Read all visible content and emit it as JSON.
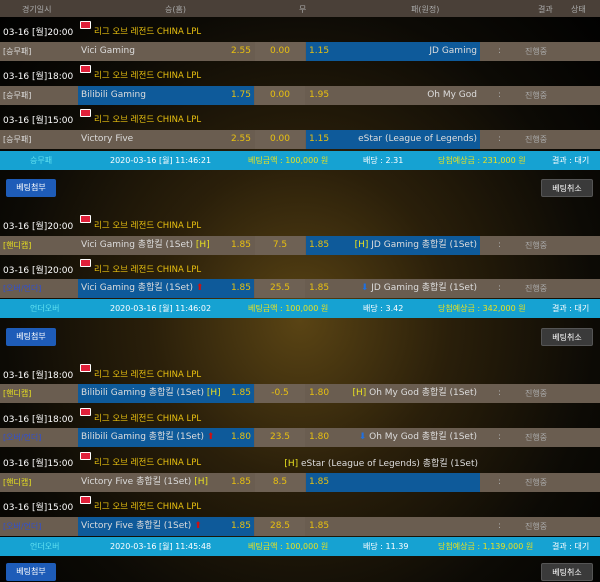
{
  "header": {
    "date": "경기일시",
    "home": "승(홈)",
    "draw": "무",
    "away": "패(원정)",
    "result": "결과",
    "status": "상태"
  },
  "league": "리그 오브 레전드 CHINA LPL",
  "buttons": {
    "attach": "베팅첨부",
    "cancel": "베팅취소"
  },
  "colors": {
    "selected": "#0e5a9a",
    "row": "#6a5d50",
    "summary": "#16a2d2",
    "odds": "#e8c010"
  },
  "slips": [
    {
      "games": [
        {
          "date": "03-16 [월]20:00",
          "type": "[승무패]",
          "kind": "m",
          "home": "Vici Gaming",
          "home_odds": "2.55",
          "draw": "0.00",
          "away_odds": "1.15",
          "away": "JD Gaming",
          "sel": "away",
          "result": ":",
          "status": "진행중"
        },
        {
          "date": "03-16 [월]18:00",
          "type": "[승무패]",
          "kind": "m",
          "home": "Bilibili Gaming",
          "home_odds": "1.75",
          "draw": "0.00",
          "away_odds": "1.95",
          "away": "Oh My God",
          "sel": "home",
          "result": ":",
          "status": "진행중"
        },
        {
          "date": "03-16 [월]15:00",
          "type": "[승무패]",
          "kind": "m",
          "home": "Victory Five",
          "home_odds": "2.55",
          "draw": "0.00",
          "away_odds": "1.15",
          "away": "eStar (League of Legends)",
          "sel": "away",
          "result": ":",
          "status": "진행중"
        }
      ],
      "summary": {
        "type": "승무패",
        "time": "2020-03-16 [월] 11:46:21",
        "amount": "베팅금액 : 100,000 원",
        "odds": "배당 : 2.31",
        "payout": "당첨예상금 : 231,000 원",
        "result": "결과 : 대기"
      }
    },
    {
      "games": [
        {
          "date": "03-16 [월]20:00",
          "type": "[핸디캡]",
          "kind": "h",
          "home": "Vici Gaming 총합킬 (1Set)",
          "home_mark": "[H]",
          "home_odds": "1.85",
          "draw": "7.5",
          "away_odds": "1.85",
          "away_mark": "[H]",
          "away": "JD Gaming 총합킬 (1Set)",
          "sel": "away",
          "result": ":",
          "status": "진행중"
        },
        {
          "date": "03-16 [월]20:00",
          "type": "[오버/언더]",
          "kind": "o",
          "home": "Vici Gaming 총합킬 (1Set)",
          "home_mark": "⬆",
          "home_odds": "1.85",
          "draw": "25.5",
          "away_odds": "1.85",
          "away_mark": "⬇",
          "away": "JD Gaming 총합킬 (1Set)",
          "sel": "home",
          "result": ":",
          "status": "진행중"
        }
      ],
      "summary": {
        "type": "언더오버",
        "time": "2020-03-16 [월] 11:46:02",
        "amount": "베팅금액 : 100,000 원",
        "odds": "배당 : 3.42",
        "payout": "당첨예상금 : 342,000 원",
        "result": "결과 : 대기"
      }
    },
    {
      "games": [
        {
          "date": "03-16 [월]18:00",
          "type": "[핸디캡]",
          "kind": "h",
          "home": "Bilibili Gaming 총합킬 (1Set)",
          "home_mark": "[H]",
          "home_odds": "1.85",
          "draw": "-0.5",
          "away_odds": "1.80",
          "away_mark": "[H]",
          "away": "Oh My God 총합킬 (1Set)",
          "sel": "home",
          "result": ":",
          "status": "진행중"
        },
        {
          "date": "03-16 [월]18:00",
          "type": "[오버/언더]",
          "kind": "o",
          "home": "Bilibili Gaming 총합킬 (1Set)",
          "home_mark": "⬆",
          "home_odds": "1.80",
          "draw": "23.5",
          "away_odds": "1.80",
          "away_mark": "⬇",
          "away": "Oh My God 총합킬 (1Set)",
          "sel": "home",
          "result": ":",
          "status": "진행중"
        },
        {
          "date": "03-16 [월]15:00",
          "type": "[핸디캡]",
          "kind": "h",
          "home": "Victory Five 총합킬 (1Set)",
          "home_mark": "[H]",
          "home_odds": "1.85",
          "draw": "8.5",
          "away_odds": "1.85",
          "overflow_mark": "[H]",
          "overflow": "eStar (League of Legends) 총합킬 (1Set)",
          "sel": "away",
          "result": ":",
          "status": "진행중"
        },
        {
          "date": "03-16 [월]15:00",
          "type": "[오버/언더]",
          "kind": "o",
          "home": "Victory Five 총합킬 (1Set)",
          "home_mark": "⬆",
          "home_odds": "1.85",
          "draw": "28.5",
          "away_odds": "1.85",
          "sel": "home",
          "result": ":",
          "status": "진행중"
        }
      ],
      "summary": {
        "type": "언더오버",
        "time": "2020-03-16 [월] 11:45:48",
        "amount": "베팅금액 : 100,000 원",
        "odds": "배당 : 11.39",
        "payout": "당첨예상금 : 1,139,000 원",
        "result": "결과 : 대기"
      }
    }
  ]
}
